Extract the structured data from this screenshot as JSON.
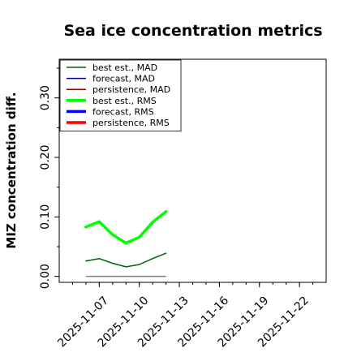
{
  "chart_data": {
    "type": "line",
    "title": "Sea ice concentration metrics",
    "ylabel": "MIZ concentration diff.",
    "xlabel": "",
    "ylim": [
      -0.01,
      0.365
    ],
    "xlim": [
      "2025-11-04",
      "2025-11-24"
    ],
    "y_ticks": [
      0.0,
      0.1,
      0.2,
      0.3
    ],
    "y_tick_labels": [
      "0.00",
      "0.10",
      "0.20",
      "0.30"
    ],
    "x_ticks": [
      "2025-11-07",
      "2025-11-10",
      "2025-11-13",
      "2025-11-16",
      "2025-11-19",
      "2025-11-22"
    ],
    "x_tick_labels": [
      "2025-11-07",
      "2025-11-10",
      "2025-11-13",
      "2025-11-16",
      "2025-11-19",
      "2025-11-22"
    ],
    "highlighted_tick": "2025-11-13",
    "highlight_color": "#2e8b2e",
    "grid": false,
    "legend_position": "upper-left",
    "x": [
      "2025-11-06",
      "2025-11-07",
      "2025-11-08",
      "2025-11-09",
      "2025-11-10",
      "2025-11-11",
      "2025-11-12"
    ],
    "series": [
      {
        "name": "best est., MAD",
        "color": "#006400",
        "width": 1.5,
        "values": [
          0.026,
          0.03,
          0.022,
          0.016,
          0.02,
          0.03,
          0.039
        ]
      },
      {
        "name": "forecast,  MAD",
        "color": "#000080",
        "width": 1.5,
        "values": [
          null,
          null,
          null,
          null,
          null,
          null,
          null
        ]
      },
      {
        "name": "persistence, MAD",
        "color": "#8b0000",
        "width": 1.5,
        "values": [
          null,
          null,
          null,
          null,
          null,
          null,
          null
        ]
      },
      {
        "name": "best est., RMS",
        "color": "#00ff00",
        "width": 3.5,
        "values": [
          0.083,
          0.092,
          0.07,
          0.056,
          0.066,
          0.091,
          0.109
        ]
      },
      {
        "name": "forecast,  RMS",
        "color": "#0000ff",
        "width": 3.5,
        "values": [
          null,
          null,
          null,
          null,
          null,
          null,
          null
        ]
      },
      {
        "name": "persistence, RMS",
        "color": "#ff0000",
        "width": 3.5,
        "values": [
          null,
          null,
          null,
          null,
          null,
          null,
          null
        ]
      }
    ],
    "reference_line": {
      "color": "#808080",
      "value": 0.0,
      "x_start": "2025-11-06",
      "x_end": "2025-11-12"
    }
  }
}
